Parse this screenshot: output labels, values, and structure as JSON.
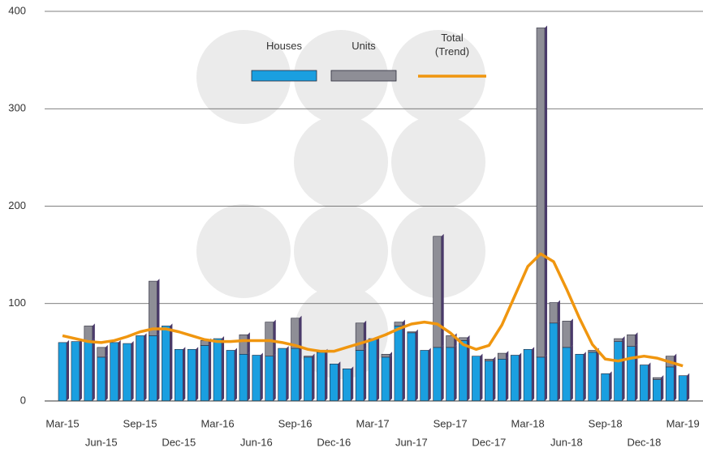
{
  "chart_data": {
    "type": "stacked_bar_line",
    "categories": [
      "Mar-15",
      null,
      null,
      "Jun-15",
      null,
      null,
      "Sep-15",
      null,
      null,
      "Dec-15",
      null,
      null,
      "Mar-16",
      null,
      null,
      "Jun-16",
      null,
      null,
      "Sep-16",
      null,
      null,
      "Dec-16",
      null,
      null,
      "Mar-17",
      null,
      null,
      "Jun-17",
      null,
      null,
      "Sep-17",
      null,
      null,
      "Dec-17",
      null,
      null,
      "Mar-18",
      null,
      null,
      "Jun-18",
      null,
      null,
      "Sep-18",
      null,
      null,
      "Dec-18",
      null,
      null,
      "Mar-19"
    ],
    "series": [
      {
        "name": "Houses",
        "color": "#1a9fe0",
        "kind": "bar",
        "values": [
          60,
          61,
          62,
          45,
          60,
          59,
          67,
          67,
          77,
          53,
          53,
          57,
          64,
          52,
          48,
          47,
          46,
          54,
          54,
          45,
          50,
          38,
          33,
          52,
          63,
          45,
          77,
          70,
          52,
          55,
          55,
          62,
          46,
          41,
          43,
          47,
          53,
          45,
          80,
          55,
          48,
          50,
          28,
          61,
          56,
          37,
          22,
          35,
          26
        ]
      },
      {
        "name": "Units",
        "color": "#8e8e96",
        "kind": "bar",
        "values": [
          0,
          0,
          15,
          10,
          0,
          0,
          0,
          56,
          0,
          0,
          0,
          5,
          0,
          0,
          20,
          0,
          35,
          0,
          31,
          1,
          1,
          0,
          0,
          28,
          1,
          3,
          4,
          1,
          0,
          114,
          12,
          3,
          0,
          2,
          6,
          0,
          0,
          338,
          21,
          27,
          0,
          2,
          0,
          3,
          12,
          0,
          2,
          11,
          0
        ]
      },
      {
        "name": "Total\n(Trend)",
        "color": "#f0960f",
        "kind": "line",
        "values": [
          67,
          64,
          61,
          60,
          62,
          66,
          71,
          74,
          74,
          71,
          67,
          63,
          61,
          61,
          62,
          62,
          62,
          60,
          57,
          53,
          51,
          51,
          55,
          59,
          63,
          68,
          74,
          79,
          81,
          79,
          70,
          58,
          53,
          57,
          78,
          108,
          138,
          151,
          143,
          115,
          85,
          58,
          43,
          41,
          44,
          46,
          44,
          40,
          36
        ]
      }
    ],
    "ylim": [
      0,
      400
    ],
    "yticks": [
      0,
      100,
      200,
      300,
      400
    ],
    "grid": true
  }
}
